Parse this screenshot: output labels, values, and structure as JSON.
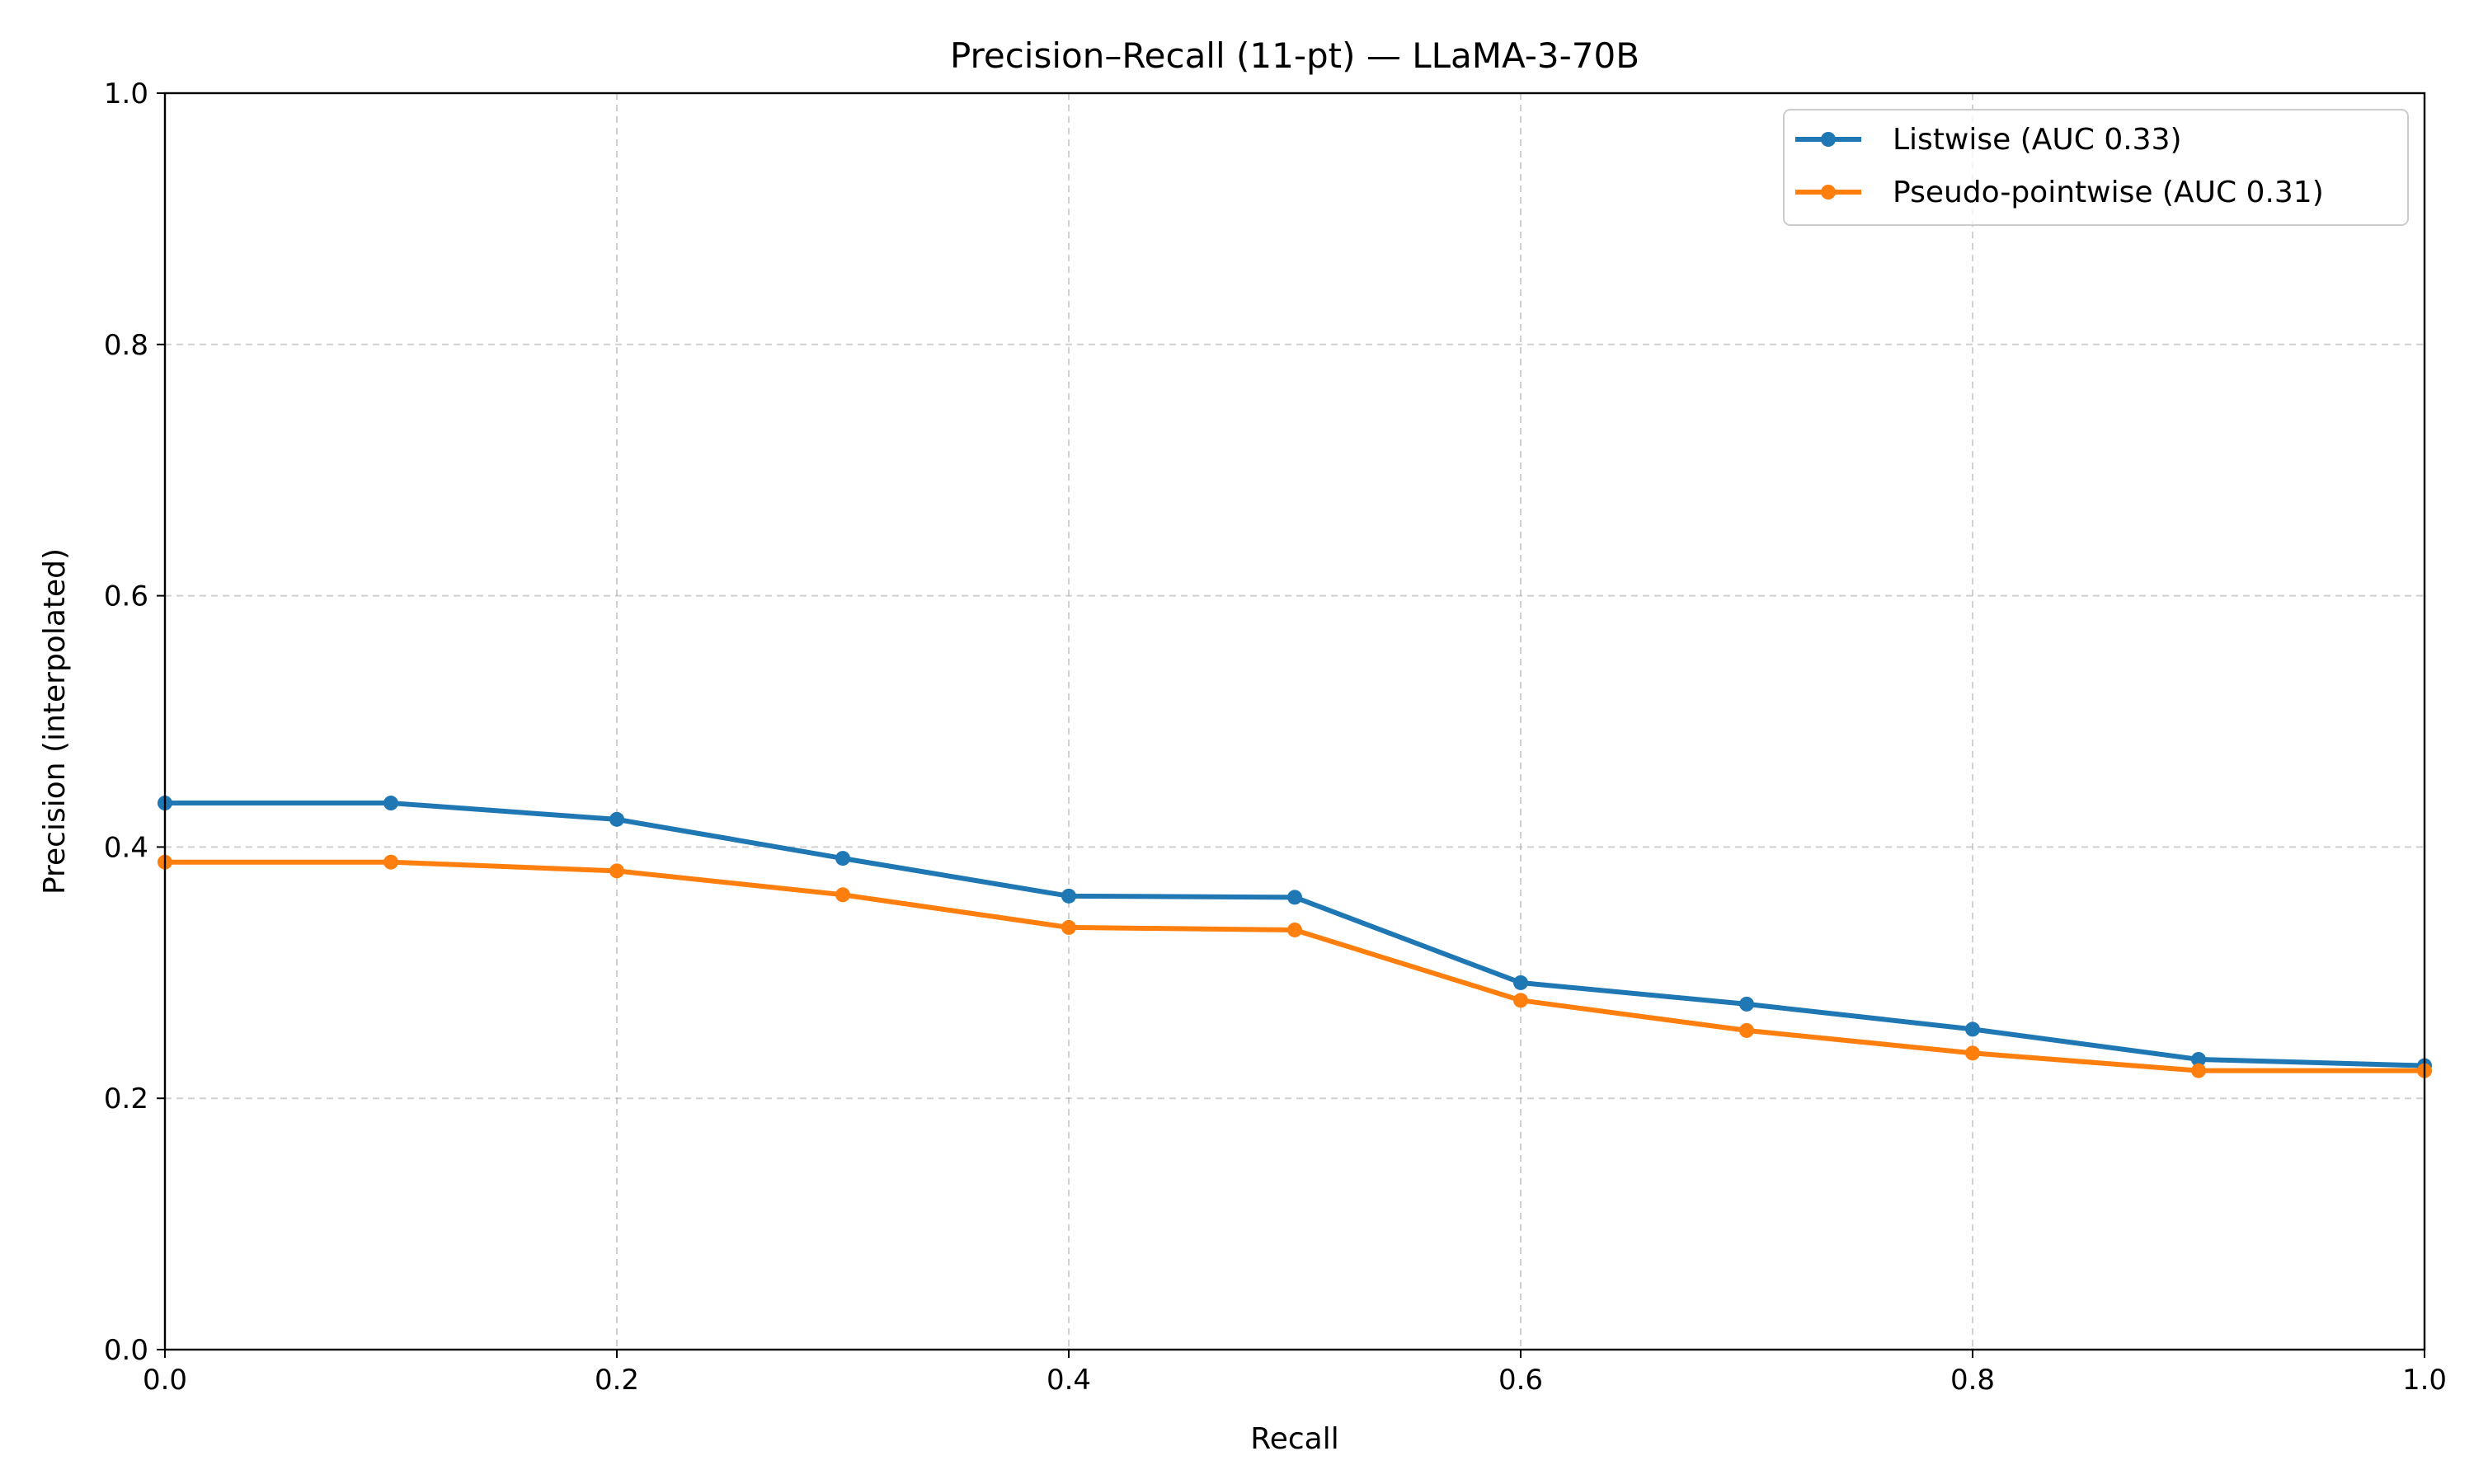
{
  "chart_data": {
    "type": "line",
    "title": "Precision–Recall (11-pt) — LLaMA-3-70B",
    "xlabel": "Recall",
    "ylabel": "Precision (interpolated)",
    "xlim": [
      0.0,
      1.0
    ],
    "ylim": [
      0.0,
      1.0
    ],
    "xticks": [
      "0.0",
      "0.2",
      "0.4",
      "0.6",
      "0.8",
      "1.0"
    ],
    "yticks": [
      "0.0",
      "0.2",
      "0.4",
      "0.6",
      "0.8",
      "1.0"
    ],
    "grid": true,
    "legend_position": "top-right",
    "x": [
      0.0,
      0.1,
      0.2,
      0.3,
      0.4,
      0.5,
      0.6,
      0.7,
      0.8,
      0.9,
      1.0
    ],
    "series": [
      {
        "name": "Listwise (AUC 0.33)",
        "color": "#1f77b4",
        "values": [
          0.435,
          0.435,
          0.422,
          0.391,
          0.361,
          0.36,
          0.292,
          0.275,
          0.255,
          0.231,
          0.226
        ]
      },
      {
        "name": "Pseudo-pointwise (AUC 0.31)",
        "color": "#ff7f0e",
        "values": [
          0.388,
          0.388,
          0.381,
          0.362,
          0.336,
          0.334,
          0.278,
          0.254,
          0.236,
          0.222,
          0.222
        ]
      }
    ]
  }
}
